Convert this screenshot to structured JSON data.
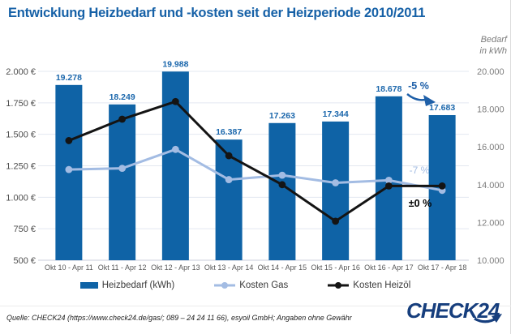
{
  "header": {
    "title": "Entwicklung Heizbedarf und -kosten seit der Heizperiode 2010/2011"
  },
  "chart_data": {
    "type": "bar+line",
    "title": "Entwicklung Heizbedarf und -kosten seit der Heizperiode 2010/2011",
    "categories": [
      "Okt 10 - Apr 11",
      "Okt 11 - Apr 12",
      "Okt 12 - Apr 13",
      "Okt 13 - Apr 14",
      "Okt 14 - Apr 15",
      "Okt 15 - Apr 16",
      "Okt 16 - Apr 17",
      "Okt 17 - Apr 18"
    ],
    "series": [
      {
        "name": "Heizbedarf (kWh)",
        "type": "bar",
        "axis": "right",
        "unit": "kWh",
        "values": [
          19278,
          18249,
          19988,
          16387,
          17263,
          17344,
          18678,
          17683
        ],
        "labels": [
          "19.278",
          "18.249",
          "19.988",
          "16.387",
          "17.263",
          "17.344",
          "18.678",
          "17.683"
        ]
      },
      {
        "name": "Kosten Gas",
        "type": "line",
        "axis": "left",
        "unit": "EUR",
        "values": [
          1220,
          1230,
          1380,
          1140,
          1175,
          1115,
          1135,
          1055
        ]
      },
      {
        "name": "Kosten Heizöl",
        "type": "line",
        "axis": "left",
        "unit": "EUR",
        "values": [
          1450,
          1620,
          1760,
          1330,
          1100,
          810,
          1090,
          1090
        ]
      }
    ],
    "left_axis": {
      "min": 500,
      "max": 2000,
      "ticks": [
        {
          "label": "2.000 €",
          "value": 2000
        },
        {
          "label": "1.750 €",
          "value": 1750
        },
        {
          "label": "1.500 €",
          "value": 1500
        },
        {
          "label": "1.250 €",
          "value": 1250
        },
        {
          "label": "1.000 €",
          "value": 1000
        },
        {
          "label": "750 €",
          "value": 750
        },
        {
          "label": "500 €",
          "value": 500
        }
      ]
    },
    "right_axis": {
      "title_lines": [
        "Bedarf",
        "in kWh"
      ],
      "min": 10000,
      "max": 20000,
      "ticks": [
        {
          "label": "20.000",
          "value": 20000
        },
        {
          "label": "18.000",
          "value": 18000
        },
        {
          "label": "16.000",
          "value": 16000
        },
        {
          "label": "14.000",
          "value": 14000
        },
        {
          "label": "12.000",
          "value": 12000
        },
        {
          "label": "10.000",
          "value": 10000
        }
      ]
    },
    "annotations": [
      {
        "id": "bars-change",
        "text": "-5 %",
        "color": "#1e5fa8"
      },
      {
        "id": "gas-change",
        "text": "-7 %",
        "color": "#a3bce3"
      },
      {
        "id": "oil-change",
        "text": "±0 %",
        "color": "#000000"
      }
    ],
    "colors": {
      "bar": "#0f63a6",
      "bar_label": "#1b67ac",
      "gas": "#a3bce3",
      "oil": "#141414",
      "grid": "#e3e8f0",
      "baseline": "#c8cedb",
      "left_axis_text": "#4d4d4d",
      "right_axis_text": "#7d7d7d",
      "category_text": "#595959"
    },
    "grid": true,
    "legend_position": "bottom"
  },
  "legend": {
    "heizbedarf": "Heizbedarf (kWh)",
    "gas": "Kosten Gas",
    "oil": "Kosten Heizöl"
  },
  "footer": {
    "source": "Quelle: CHECK24 (https://www.check24.de/gas/; 089 – 24 24 11 66), esyoil GmbH; Angaben ohne Gewähr",
    "logo_text": "CHECK24",
    "logo_color": "#163e7d"
  }
}
